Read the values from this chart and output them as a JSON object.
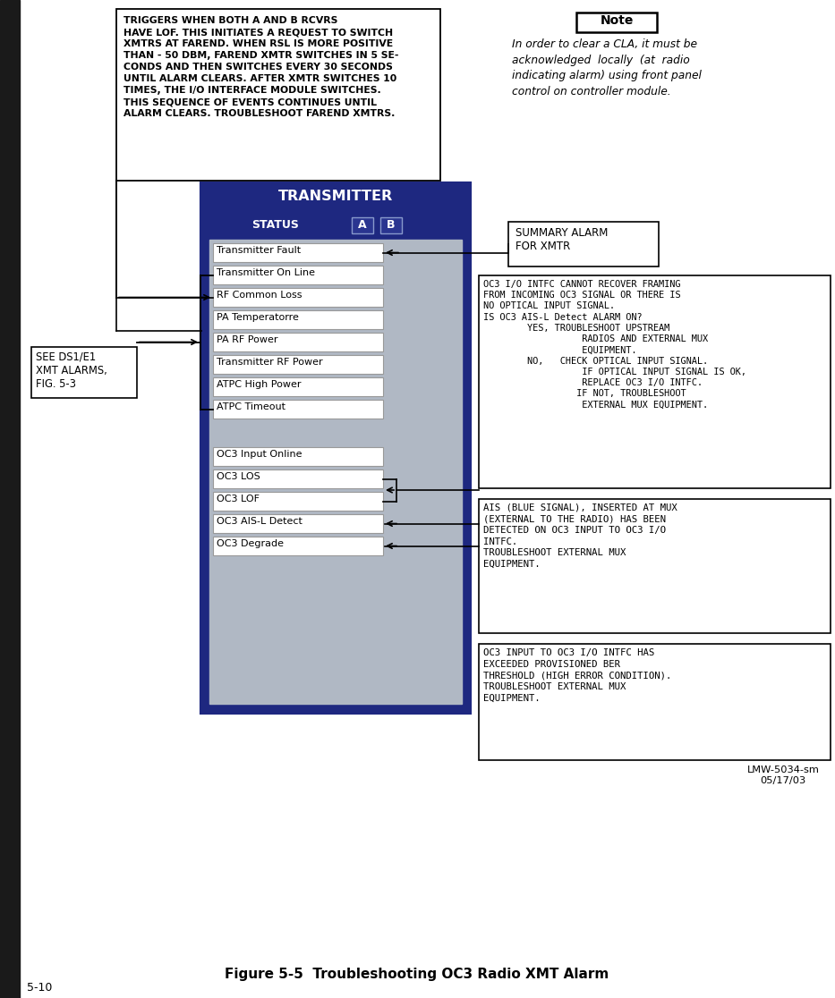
{
  "title": "Figure 5-5  Troubleshooting OC3 Radio XMT Alarm",
  "page_num": "5-10",
  "bg_color": "#ffffff",
  "dark_navy": "#1e2880",
  "medium_navy": "#2a3590",
  "box_bg": "#b0b8c4",
  "transmitter_items_group1": [
    "Transmitter Fault",
    "Transmitter On Line",
    "RF Common Loss",
    "PA Temperatorre",
    "PA RF Power",
    "Transmitter RF Power",
    "ATPC High Power",
    "ATPC Timeout"
  ],
  "transmitter_items_group2": [
    "OC3 Input Online",
    "OC3 LOS",
    "OC3 LOF",
    "OC3 AIS-L Detect",
    "OC3 Degrade"
  ],
  "top_box_text": "TRIGGERS WHEN BOTH A AND B RCVRS\nHAVE LOF. THIS INITIATES A REQUEST TO SWITCH\nXMTRS AT FAREND. WHEN RSL IS MORE POSITIVE\nTHAN - 50 DBM, FAREND XMTR SWITCHES IN 5 SE-\nCONDS AND THEN SWITCHES EVERY 30 SECONDS\nUNTIL ALARM CLEARS. AFTER XMTR SWITCHES 10\nTIMES, THE I/O INTERFACE MODULE SWITCHES.\nTHIS SEQUENCE OF EVENTS CONTINUES UNTIL\nALARM CLEARS. TROUBLESHOOT FAREND XMTRS.",
  "note_title": "Note",
  "note_text": "In order to clear a CLA, it must be\nacknowledged  locally  (at  radio\nindicating alarm) using front panel\ncontrol on controller module.",
  "summary_alarm_text": "SUMMARY ALARM\nFOR XMTR",
  "oc3_lof_box_text": "OC3 I/O INTFC CANNOT RECOVER FRAMING\nFROM INCOMING OC3 SIGNAL OR THERE IS\nNO OPTICAL INPUT SIGNAL.\nIS OC3 AIS-L Detect ALARM ON?\n        YES, TROUBLESHOOT UPSTREAM\n                  RADIOS AND EXTERNAL MUX\n                  EQUIPMENT.\n        NO,   CHECK OPTICAL INPUT SIGNAL.\n                  IF OPTICAL INPUT SIGNAL IS OK,\n                  REPLACE OC3 I/O INTFC.\n                 IF NOT, TROUBLESHOOT\n                  EXTERNAL MUX EQUIPMENT.",
  "ais_box_text": "AIS (BLUE SIGNAL), INSERTED AT MUX\n(EXTERNAL TO THE RADIO) HAS BEEN\nDETECTED ON OC3 INPUT TO OC3 I/O\nINTFC.\nTROUBLESHOOT EXTERNAL MUX\nEQUIPMENT.",
  "degrade_box_text": "OC3 INPUT TO OC3 I/O INTFC HAS\nEXCEEDED PROVISIONED BER\nTHRESHOLD (HIGH ERROR CONDITION).\nTROUBLESHOOT EXTERNAL MUX\nEQUIPMENT.",
  "see_ds1_text": "SEE DS1/E1\nXMT ALARMS,\nFIG. 5-3",
  "lmw_text": "LMW-5034-sm\n05/17/03"
}
